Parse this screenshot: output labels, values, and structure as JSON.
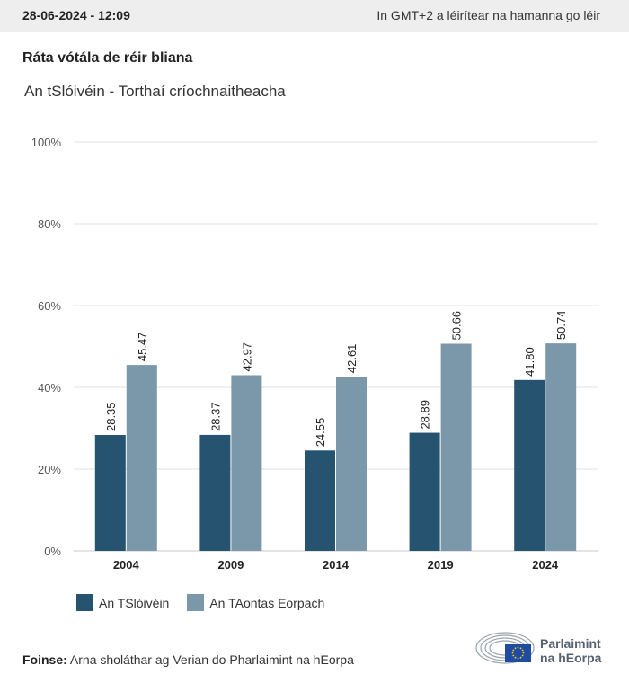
{
  "header": {
    "date": "28-06-2024 - 12:09",
    "timezone_note": "In GMT+2 a léirítear na hamanna go léir"
  },
  "title": "Ráta vótála de réir bliana",
  "subtitle": "An tSlóivéin - Torthaí críochnaitheacha",
  "colors": {
    "series_1": "#26536f",
    "series_2": "#7b98aa",
    "grid": "#e2e2e2",
    "axis_text": "#555555"
  },
  "chart_data": {
    "type": "bar",
    "categories": [
      "2004",
      "2009",
      "2014",
      "2019",
      "2024"
    ],
    "series": [
      {
        "name": "An TSlóivéin",
        "values": [
          28.35,
          28.37,
          24.55,
          28.89,
          41.8
        ]
      },
      {
        "name": "An TAontas Eorpach",
        "values": [
          45.47,
          42.97,
          42.61,
          50.66,
          50.74
        ]
      }
    ],
    "value_labels": [
      [
        "28.35",
        "28.37",
        "24.55",
        "28.89",
        "41.80"
      ],
      [
        "45.47",
        "42.97",
        "42.61",
        "50.66",
        "50.74"
      ]
    ],
    "ylim": [
      0,
      100
    ],
    "yticks": [
      0,
      20,
      40,
      60,
      80,
      100
    ],
    "ytick_labels": [
      "0%",
      "20%",
      "40%",
      "60%",
      "80%",
      "100%"
    ],
    "grid": true,
    "legend_position": "bottom-left"
  },
  "legend": {
    "items": [
      {
        "label": "An TSlóivéin",
        "color": "#26536f"
      },
      {
        "label": "An TAontas Eorpach",
        "color": "#7b98aa"
      }
    ]
  },
  "source": {
    "label": "Foinse:",
    "text": "Arna sholáthar ag Verian do Pharlaimint na hEorpa"
  },
  "logo": {
    "line1": "Parlaimint",
    "line2": "na hEorpa"
  }
}
